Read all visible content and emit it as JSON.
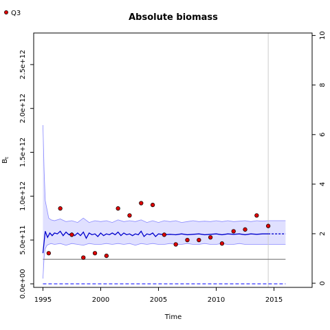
{
  "chart_data": {
    "type": "scatter",
    "title": "Absolute biomass",
    "xlabel": "Time",
    "ylabel": "B_t",
    "ylabel_main": "B",
    "ylabel_sub": "t",
    "xlim": [
      1994.2,
      2018.3
    ],
    "ylim": [
      -40000000000.0,
      2860000000000.0
    ],
    "ylim_right": [
      -0.166,
      10.1
    ],
    "x_ticks": [
      1995,
      2000,
      2005,
      2010,
      2015
    ],
    "y_ticks": [
      0,
      500000000000.0,
      1000000000000.0,
      1500000000000.0,
      2000000000000.0,
      2500000000000.0
    ],
    "y_tick_labels": [
      "0.0e+00",
      "5.0e+11",
      "1.0e+12",
      "1.5e+12",
      "2.0e+12",
      "2.5e+12"
    ],
    "y_ticks_right": [
      0,
      2,
      4,
      6,
      8,
      10
    ],
    "y_tick_labels_right": [
      "0",
      "2",
      "4",
      "6",
      "8",
      "10"
    ],
    "grid": false,
    "legend": {
      "position": "top-left",
      "entries": [
        "Q3"
      ]
    },
    "vline_x": 2014.5,
    "hline_solid_y": 280000000000.0,
    "hline_dashed_y": 0,
    "colors": {
      "points_fill": "#dd0000",
      "points_stroke": "#000000",
      "median_line": "#0000cc",
      "ci_fill": "#e0e0ff",
      "ci_line": "#8888ff",
      "hline_solid": "#777777",
      "hline_dashed": "#3333ff",
      "vline": "#cccccc"
    },
    "series": [
      {
        "name": "Q3",
        "kind": "points",
        "x": [
          1995.5,
          1996.5,
          1997.5,
          1998.5,
          1999.5,
          2000.5,
          2001.5,
          2002.5,
          2003.5,
          2004.5,
          2005.5,
          2006.5,
          2007.5,
          2008.5,
          2009.5,
          2010.5,
          2011.5,
          2012.5,
          2013.5,
          2014.5
        ],
        "y": [
          350000000000.0,
          860000000000.0,
          560000000000.0,
          300000000000.0,
          350000000000.0,
          320000000000.0,
          860000000000.0,
          780000000000.0,
          920000000000.0,
          900000000000.0,
          560000000000.0,
          450000000000.0,
          500000000000.0,
          500000000000.0,
          530000000000.0,
          460000000000.0,
          600000000000.0,
          620000000000.0,
          780000000000.0,
          660000000000.0
        ]
      },
      {
        "kind": "median",
        "x": [
          1995,
          1995.2,
          1995.4,
          1995.6,
          1995.8,
          1996,
          1996.25,
          1996.5,
          1996.75,
          1997,
          1997.25,
          1997.5,
          1997.75,
          1998,
          1998.25,
          1998.5,
          1998.75,
          1999,
          1999.25,
          1999.5,
          1999.75,
          2000,
          2000.25,
          2000.5,
          2000.75,
          2001,
          2001.25,
          2001.5,
          2001.75,
          2002,
          2002.25,
          2002.5,
          2002.75,
          2003,
          2003.25,
          2003.5,
          2003.75,
          2004,
          2004.25,
          2004.5,
          2004.75,
          2005,
          2005.5,
          2006,
          2006.5,
          2007,
          2007.5,
          2008,
          2008.5,
          2009,
          2009.5,
          2010,
          2010.5,
          2011,
          2011.5,
          2012,
          2012.5,
          2013,
          2013.5,
          2014,
          2014.5,
          2015,
          2015.5,
          2016
        ],
        "y": [
          350000000000.0,
          600000000000.0,
          530000000000.0,
          580000000000.0,
          550000000000.0,
          580000000000.0,
          570000000000.0,
          600000000000.0,
          550000000000.0,
          590000000000.0,
          560000000000.0,
          580000000000.0,
          550000000000.0,
          580000000000.0,
          550000000000.0,
          590000000000.0,
          520000000000.0,
          580000000000.0,
          560000000000.0,
          570000000000.0,
          540000000000.0,
          580000000000.0,
          550000000000.0,
          570000000000.0,
          560000000000.0,
          580000000000.0,
          560000000000.0,
          590000000000.0,
          550000000000.0,
          580000000000.0,
          560000000000.0,
          570000000000.0,
          550000000000.0,
          570000000000.0,
          560000000000.0,
          600000000000.0,
          540000000000.0,
          570000000000.0,
          560000000000.0,
          580000000000.0,
          540000000000.0,
          570000000000.0,
          560000000000.0,
          565000000000.0,
          560000000000.0,
          570000000000.0,
          560000000000.0,
          565000000000.0,
          570000000000.0,
          560000000000.0,
          565000000000.0,
          570000000000.0,
          560000000000.0,
          570000000000.0,
          565000000000.0,
          570000000000.0,
          560000000000.0,
          570000000000.0,
          565000000000.0,
          570000000000.0,
          570000000000.0,
          570000000000.0,
          570000000000.0,
          570000000000.0
        ]
      },
      {
        "kind": "ci_upper",
        "x": [
          1995,
          1995.1,
          1995.2,
          1995.35,
          1995.5,
          1995.7,
          1996,
          1996.5,
          1997,
          1997.5,
          1998,
          1998.5,
          1999,
          1999.5,
          2000,
          2000.5,
          2001,
          2001.5,
          2002,
          2002.5,
          2003,
          2003.5,
          2004,
          2004.5,
          2005,
          2005.5,
          2006,
          2006.5,
          2007,
          2007.5,
          2008,
          2008.5,
          2009,
          2009.5,
          2010,
          2010.5,
          2011,
          2011.5,
          2012,
          2012.5,
          2013,
          2013.5,
          2014,
          2014.5,
          2015,
          2015.5,
          2016
        ],
        "y": [
          1810000000000.0,
          1300000000000.0,
          950000000000.0,
          850000000000.0,
          750000000000.0,
          730000000000.0,
          720000000000.0,
          740000000000.0,
          710000000000.0,
          720000000000.0,
          700000000000.0,
          750000000000.0,
          700000000000.0,
          720000000000.0,
          710000000000.0,
          720000000000.0,
          700000000000.0,
          730000000000.0,
          710000000000.0,
          720000000000.0,
          710000000000.0,
          730000000000.0,
          700000000000.0,
          720000000000.0,
          700000000000.0,
          720000000000.0,
          710000000000.0,
          720000000000.0,
          700000000000.0,
          710000000000.0,
          720000000000.0,
          710000000000.0,
          715000000000.0,
          710000000000.0,
          720000000000.0,
          710000000000.0,
          720000000000.0,
          710000000000.0,
          715000000000.0,
          720000000000.0,
          710000000000.0,
          720000000000.0,
          715000000000.0,
          720000000000.0,
          720000000000.0,
          720000000000.0,
          720000000000.0
        ]
      },
      {
        "kind": "ci_lower",
        "x": [
          1995,
          1995.1,
          1995.2,
          1995.35,
          1995.5,
          1995.7,
          1996,
          1996.5,
          1997,
          1997.5,
          1998,
          1998.5,
          1999,
          1999.5,
          2000,
          2000.5,
          2001,
          2001.5,
          2002,
          2002.5,
          2003,
          2003.5,
          2004,
          2004.5,
          2005,
          2005.5,
          2006,
          2006.5,
          2007,
          2007.5,
          2008,
          2008.5,
          2009,
          2009.5,
          2010,
          2010.5,
          2011,
          2011.5,
          2012,
          2012.5,
          2013,
          2013.5,
          2014,
          2014.5,
          2015,
          2015.5,
          2016
        ],
        "y": [
          60000000000.0,
          300000000000.0,
          400000000000.0,
          440000000000.0,
          450000000000.0,
          460000000000.0,
          450000000000.0,
          460000000000.0,
          440000000000.0,
          460000000000.0,
          450000000000.0,
          440000000000.0,
          460000000000.0,
          450000000000.0,
          450000000000.0,
          460000000000.0,
          450000000000.0,
          460000000000.0,
          450000000000.0,
          460000000000.0,
          440000000000.0,
          460000000000.0,
          450000000000.0,
          460000000000.0,
          450000000000.0,
          450000000000.0,
          460000000000.0,
          450000000000.0,
          450000000000.0,
          460000000000.0,
          450000000000.0,
          450000000000.0,
          460000000000.0,
          450000000000.0,
          450000000000.0,
          460000000000.0,
          450000000000.0,
          450000000000.0,
          460000000000.0,
          450000000000.0,
          450000000000.0,
          450000000000.0,
          450000000000.0,
          450000000000.0,
          450000000000.0,
          450000000000.0,
          450000000000.0
        ]
      }
    ]
  }
}
